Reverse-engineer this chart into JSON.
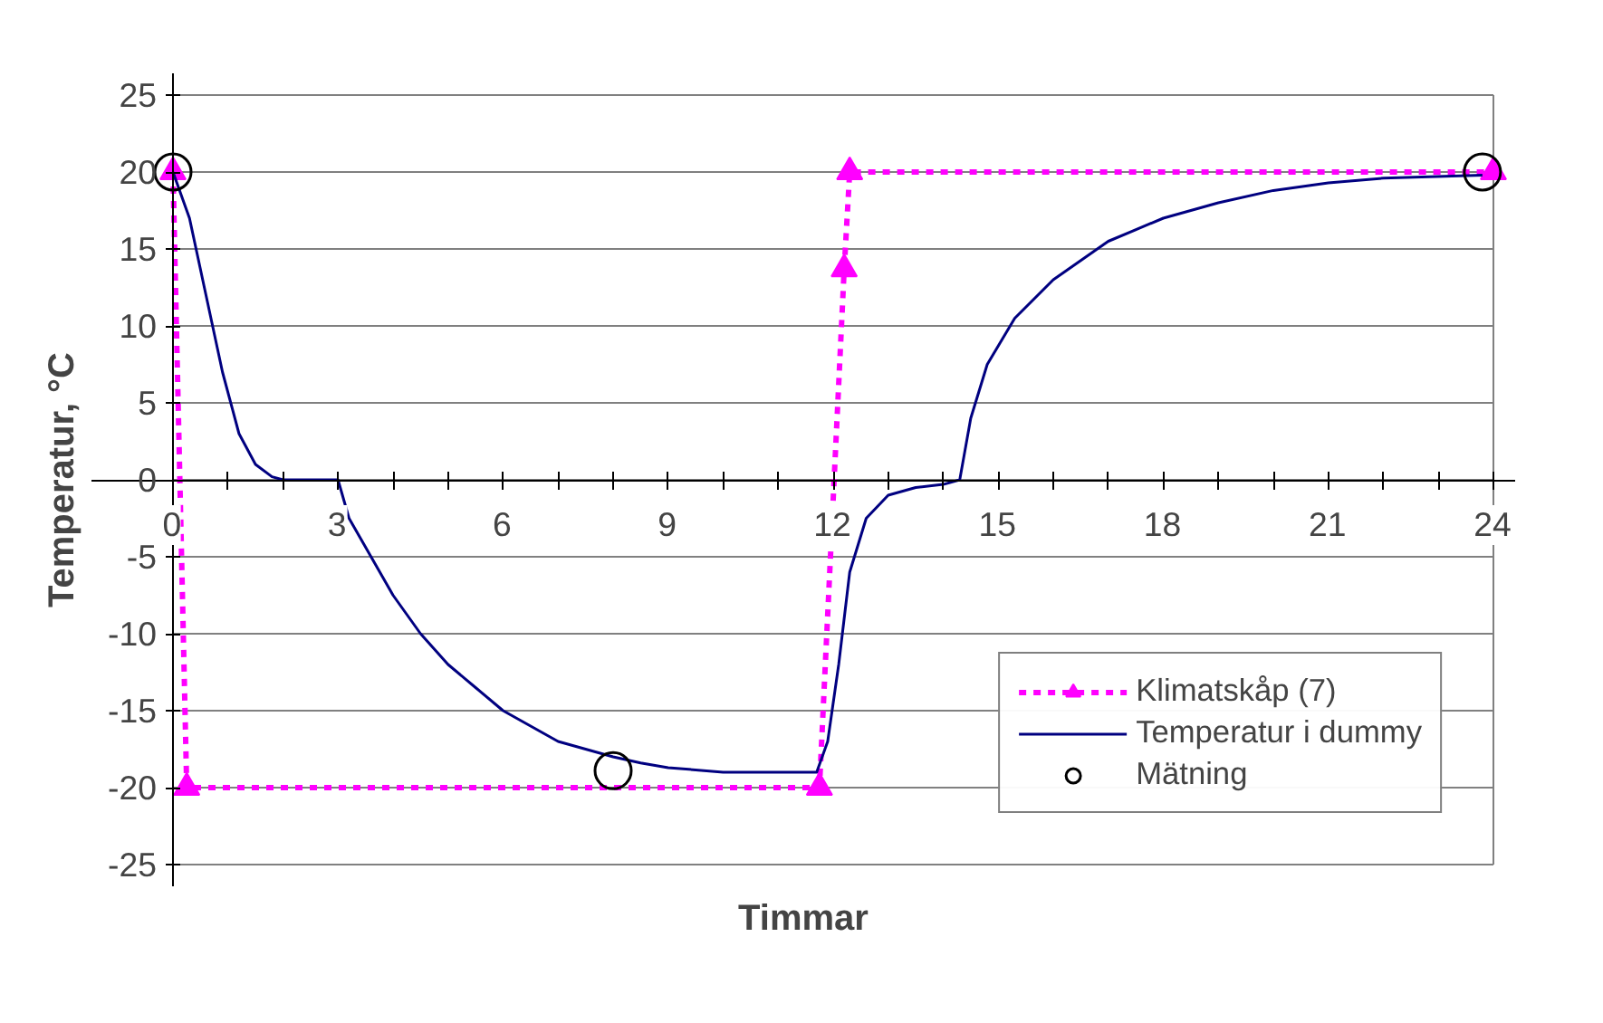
{
  "chart_data": {
    "type": "line",
    "xlabel": "Timmar",
    "ylabel": "Temperatur, °C",
    "xlim": [
      0,
      24
    ],
    "ylim": [
      -25,
      25
    ],
    "xticks": [
      0,
      {
        "value": 1,
        "label": null
      },
      {
        "value": 2,
        "label": null
      },
      3,
      {
        "value": 4,
        "label": null
      },
      {
        "value": 5,
        "label": null
      },
      6,
      {
        "value": 7,
        "label": null
      },
      {
        "value": 8,
        "label": null
      },
      9,
      {
        "value": 10,
        "label": null
      },
      {
        "value": 11,
        "label": null
      },
      12,
      {
        "value": 13,
        "label": null
      },
      {
        "value": 14,
        "label": null
      },
      15,
      {
        "value": 16,
        "label": null
      },
      {
        "value": 17,
        "label": null
      },
      18,
      {
        "value": 19,
        "label": null
      },
      {
        "value": 20,
        "label": null
      },
      21,
      {
        "value": 22,
        "label": null
      },
      {
        "value": 23,
        "label": null
      },
      24
    ],
    "yticks": [
      -25,
      -20,
      -15,
      -10,
      -5,
      0,
      5,
      10,
      15,
      20,
      25
    ],
    "grid": "y",
    "legend": "bottom right",
    "series": [
      {
        "name": "Klimatskåp (7)",
        "color": "#ff00ff",
        "marker": "triangle",
        "line_style": "dashed",
        "x": [
          0,
          0.25,
          11.75,
          12.2,
          12.3,
          24
        ],
        "values": [
          20,
          -20,
          -20,
          13.7,
          20,
          20
        ]
      },
      {
        "name": "Temperatur i dummy",
        "color": "#000080",
        "marker": "none",
        "line_style": "solid",
        "x": [
          0,
          0.3,
          0.6,
          0.9,
          1.2,
          1.5,
          1.8,
          2,
          3,
          3.2,
          3.6,
          4,
          4.5,
          5,
          5.5,
          6,
          6.5,
          7,
          7.5,
          8,
          8.5,
          9,
          10,
          11.7,
          11.9,
          12.1,
          12.3,
          12.6,
          13,
          13.5,
          14,
          14.3,
          14.5,
          14.8,
          15.3,
          16,
          17,
          18,
          19,
          20,
          21,
          22,
          23.8
        ],
        "values": [
          20,
          17,
          12,
          7,
          3,
          1,
          0.2,
          0,
          0,
          -2.5,
          -5,
          -7.5,
          -10,
          -12,
          -13.5,
          -15,
          -16,
          -17,
          -17.5,
          -18,
          -18.4,
          -18.7,
          -19,
          -19,
          -17,
          -12,
          -6,
          -2.5,
          -1,
          -0.5,
          -0.3,
          0,
          4,
          7.5,
          10.5,
          13,
          15.5,
          17,
          18,
          18.8,
          19.3,
          19.6,
          19.8
        ]
      },
      {
        "name": "Mätning",
        "type": "scatter",
        "color": "#000000",
        "marker": "circle",
        "x": [
          0,
          8,
          23.8
        ],
        "values": [
          20,
          -18.9,
          20
        ]
      }
    ]
  }
}
